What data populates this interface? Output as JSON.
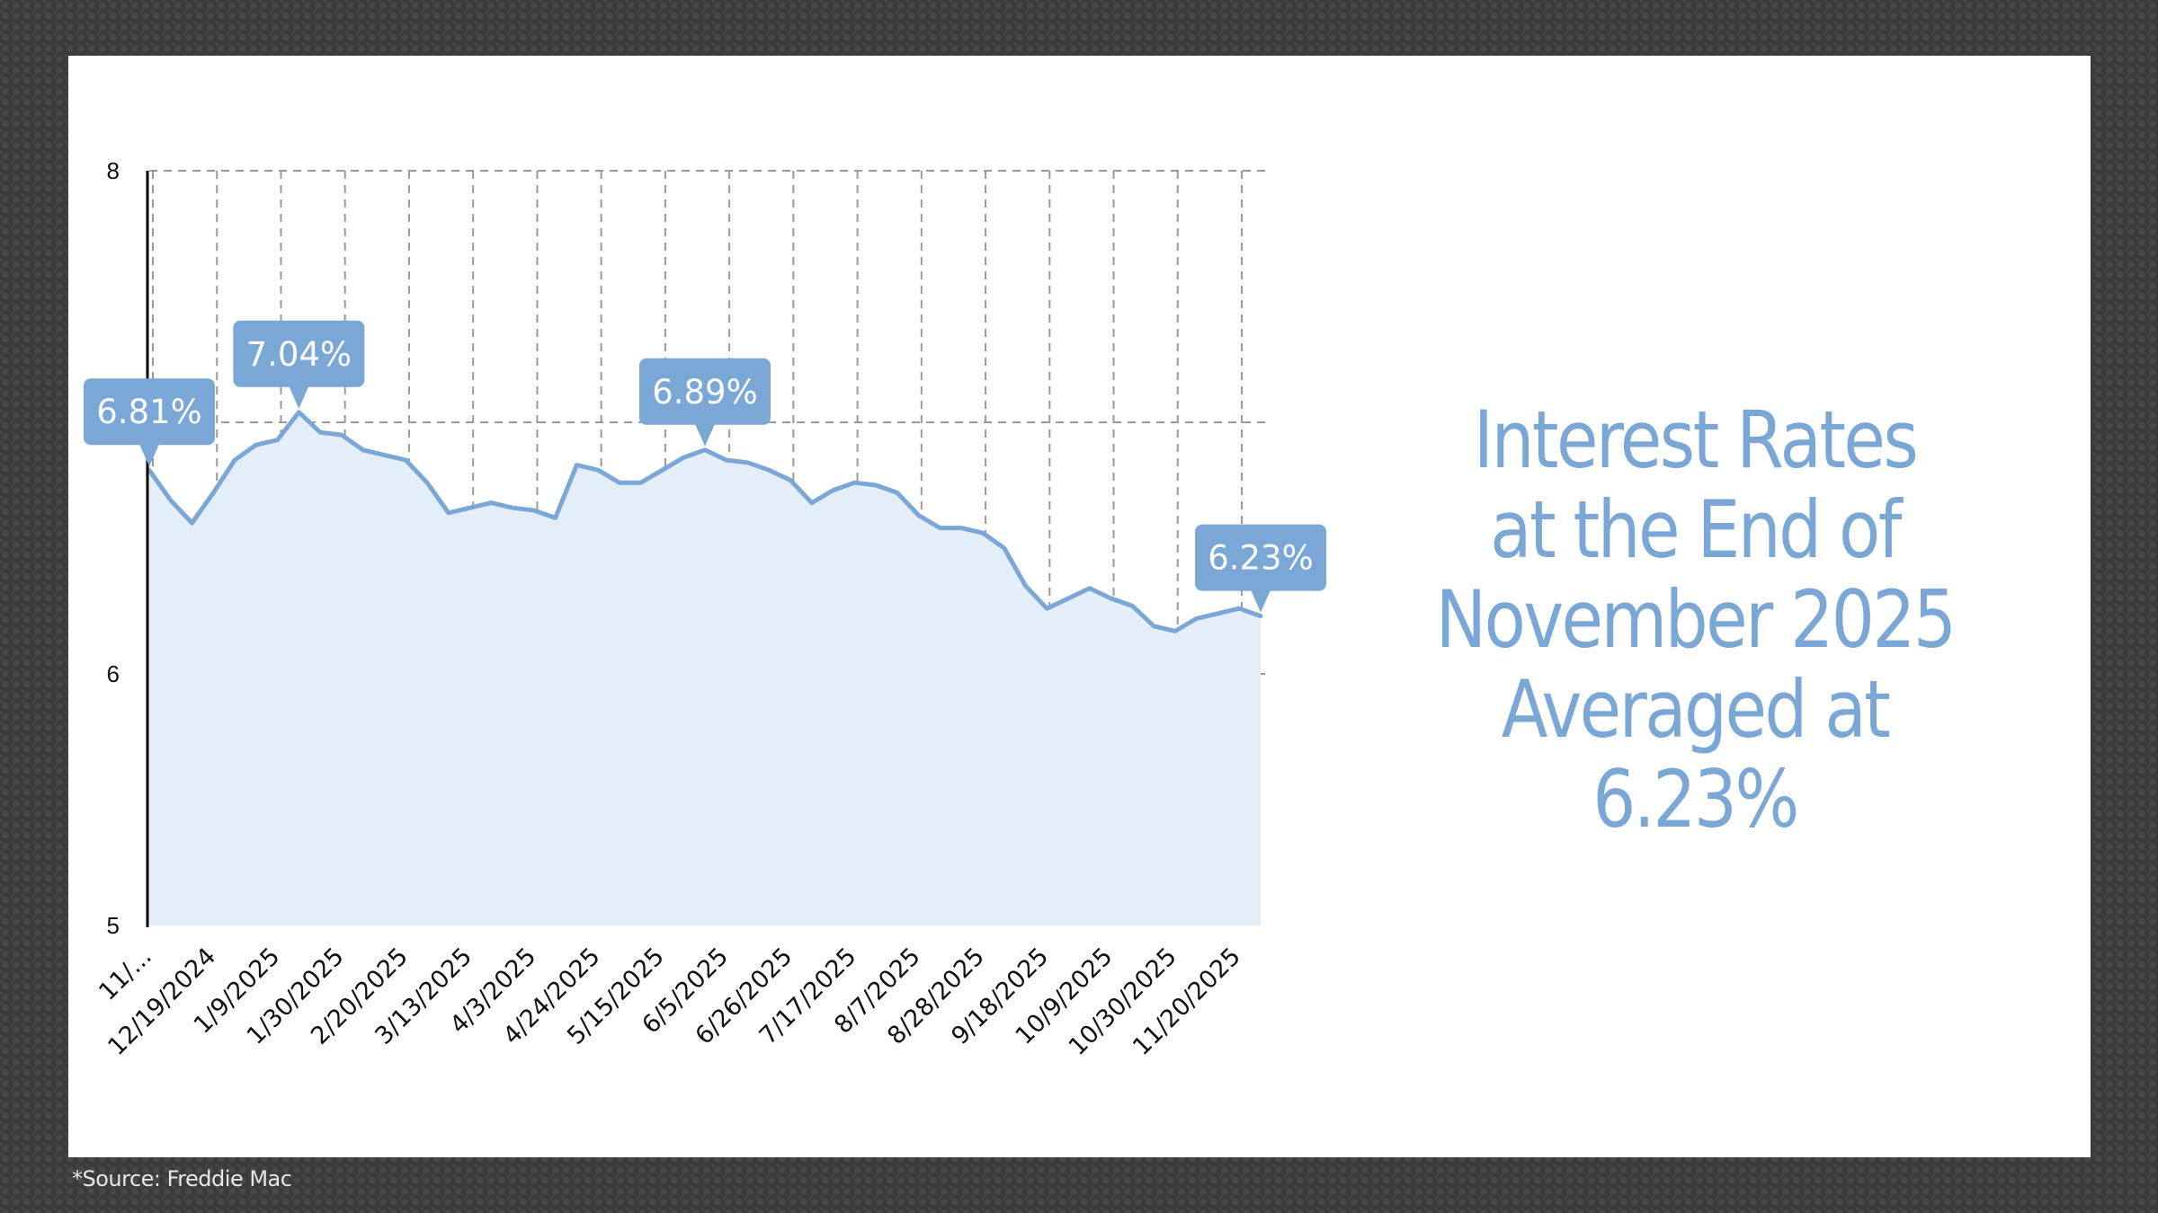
{
  "headline": {
    "line1": "Interest Rates",
    "line2": "at the End of",
    "line3": "November 2025",
    "line4": "Averaged at 6.23%"
  },
  "footnote": "*Source: Freddie Mac",
  "colors": {
    "accent": "#7aa7d6",
    "fill": "#e4eef8",
    "grid": "#9a9a9a",
    "axis": "#000000",
    "background": "#ffffff"
  },
  "chart_data": {
    "type": "area",
    "x_tick_labels": [
      "11/...",
      "12/19/2024",
      "1/9/2025",
      "1/30/2025",
      "2/20/2025",
      "3/13/2025",
      "4/3/2025",
      "4/24/2025",
      "5/15/2025",
      "6/5/2025",
      "6/26/2025",
      "7/17/2025",
      "8/7/2025",
      "8/28/2025",
      "9/18/2025",
      "10/9/2025",
      "10/30/2025",
      "11/20/2025"
    ],
    "y_ticks": [
      "5",
      "6",
      "7",
      "8"
    ],
    "ylim": [
      5,
      8
    ],
    "grid": true,
    "values": [
      6.81,
      6.69,
      6.6,
      6.72,
      6.85,
      6.91,
      6.93,
      7.04,
      6.96,
      6.95,
      6.89,
      6.87,
      6.85,
      6.76,
      6.64,
      6.66,
      6.68,
      6.66,
      6.65,
      6.62,
      6.83,
      6.81,
      6.76,
      6.76,
      6.81,
      6.86,
      6.89,
      6.85,
      6.84,
      6.81,
      6.77,
      6.68,
      6.73,
      6.76,
      6.75,
      6.72,
      6.63,
      6.58,
      6.58,
      6.56,
      6.5,
      6.35,
      6.26,
      6.3,
      6.34,
      6.3,
      6.27,
      6.19,
      6.17,
      6.22,
      6.24,
      6.26,
      6.23
    ],
    "callouts": [
      {
        "index": 0,
        "label": "6.81%"
      },
      {
        "index": 7,
        "label": "7.04%"
      },
      {
        "index": 26,
        "label": "6.89%"
      },
      {
        "index": 52,
        "label": "6.23%"
      }
    ]
  }
}
